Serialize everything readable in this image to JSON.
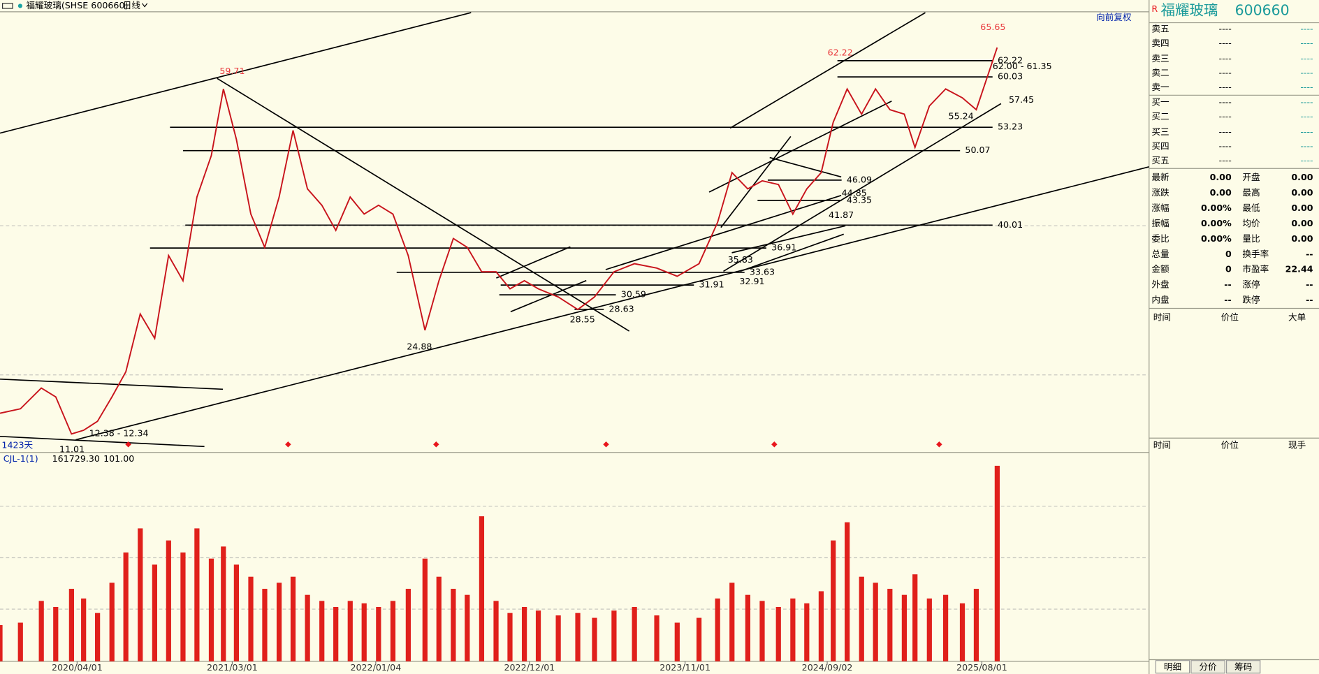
{
  "header": {
    "title": "福耀玻璃(SHSE 600660)",
    "period": "日线",
    "adjust": "向前复权"
  },
  "chart_data": {
    "type": "line",
    "color": "#c8141c",
    "x": [
      "2019/10/18",
      "2019/12/01",
      "2020/01/15",
      "2020/02/15",
      "2020/03/20",
      "2020/04/15",
      "2020/05/15",
      "2020/06/15",
      "2020/07/15",
      "2020/08/15",
      "2020/09/15",
      "2020/10/15",
      "2020/11/15",
      "2020/12/15",
      "2021/01/15",
      "2021/02/10",
      "2021/03/10",
      "2021/04/10",
      "2021/05/10",
      "2021/06/10",
      "2021/07/10",
      "2021/08/10",
      "2021/09/10",
      "2021/10/10",
      "2021/11/10",
      "2021/12/10",
      "2022/01/10",
      "2022/02/10",
      "2022/03/15",
      "2022/04/20",
      "2022/05/20",
      "2022/06/20",
      "2022/07/20",
      "2022/08/20",
      "2022/09/20",
      "2022/10/20",
      "2022/11/20",
      "2022/12/20",
      "2023/02/01",
      "2023/03/15",
      "2023/04/20",
      "2023/06/01",
      "2023/07/15",
      "2023/09/01",
      "2023/10/15",
      "2023/12/01",
      "2024/01/10",
      "2024/02/10",
      "2024/03/15",
      "2024/04/15",
      "2024/05/20",
      "2024/06/20",
      "2024/07/20",
      "2024/08/20",
      "2024/09/15",
      "2024/10/15",
      "2024/11/15",
      "2024/12/15",
      "2025/01/15",
      "2025/02/15",
      "2025/03/10",
      "2025/04/10",
      "2025/05/15",
      "2025/06/20",
      "2025/07/20",
      "2025/09/03"
    ],
    "values": [
      14.6,
      15.2,
      18.0,
      16.8,
      11.8,
      12.3,
      13.5,
      16.8,
      20.2,
      28.0,
      24.7,
      35.9,
      32.5,
      43.8,
      49.4,
      58.4,
      51.6,
      41.5,
      37.0,
      43.8,
      52.8,
      44.9,
      42.7,
      39.3,
      43.8,
      41.5,
      42.7,
      41.5,
      35.9,
      25.8,
      32.5,
      38.2,
      37.0,
      33.7,
      33.7,
      31.4,
      32.5,
      31.4,
      30.3,
      28.6,
      30.3,
      33.7,
      34.8,
      34.2,
      33.1,
      34.8,
      40.4,
      47.1,
      44.9,
      46.0,
      45.5,
      41.5,
      44.9,
      47.1,
      53.9,
      58.4,
      55.0,
      58.4,
      55.6,
      55.0,
      50.5,
      56.1,
      58.4,
      57.2,
      55.6,
      64.0
    ],
    "xlim": [
      "2019/10/18",
      "2026/07/27"
    ],
    "xticks": [
      "2020/04/01",
      "2021/03/01",
      "2022/01/04",
      "2022/12/01",
      "2023/11/01",
      "2024/09/02",
      "2025/08/01"
    ],
    "ylim": [
      10.1,
      68.37
    ],
    "days_label": "1423天",
    "levels": [
      {
        "value": 62.22,
        "from": "2024/09/24",
        "to": "2025/08/24"
      },
      {
        "value": 60.03,
        "from": "2024/09/24",
        "to": "2025/08/24"
      },
      {
        "value": 53.23,
        "from": "2020/10/18",
        "to": "2025/08/24"
      },
      {
        "value": 50.07,
        "from": "2020/11/15",
        "to": "2025/06/15"
      },
      {
        "value": 46.09,
        "from": "2024/04/27",
        "to": "2024/10/03"
      },
      {
        "value": 43.35,
        "from": "2024/04/05",
        "to": "2024/10/03"
      },
      {
        "value": 40.01,
        "from": "2020/11/20",
        "to": "2025/08/24"
      },
      {
        "value": 36.91,
        "from": "2020/09/05",
        "to": "2024/04/24"
      },
      {
        "value": 33.63,
        "from": "2022/02/18",
        "to": "2024/03/08"
      },
      {
        "value": 31.91,
        "from": "2022/09/30",
        "to": "2023/11/20"
      },
      {
        "value": 30.59,
        "from": "2022/09/27",
        "to": "2023/06/05"
      },
      {
        "value": 28.63,
        "from": "2023/03/08",
        "to": "2023/05/10"
      }
    ],
    "annotations": [
      {
        "x": "2021/03/01",
        "y": 59.71,
        "color": "#e8363a"
      },
      {
        "x": "2024/09/30",
        "y": 62.22,
        "color": "#e8363a"
      },
      {
        "x": "2025/08/25",
        "y": 65.65,
        "color": "#e8363a"
      },
      {
        "x": "2022/04/08",
        "y": 24.88
      },
      {
        "x": "2020/03/21",
        "y": 11.01
      },
      {
        "x": "2020/04/27",
        "y": 12.38,
        "label": "12.38 - 12.34"
      },
      {
        "x": "2023/03/25",
        "y": 28.55
      },
      {
        "x": "2024/02/01",
        "y": 35.83
      },
      {
        "x": "2024/02/26",
        "y": 32.91
      },
      {
        "x": "2024/10/03",
        "y": 44.85
      },
      {
        "x": "2024/09/05",
        "y": 41.87
      },
      {
        "x": "2025/05/21",
        "y": 55.24
      },
      {
        "x": "2025/08/24",
        "y": 62.0,
        "label": "62.00 - 61.35"
      },
      {
        "x": "2025/09/28",
        "y": 57.45
      }
    ],
    "volume": {
      "indicator": "CJL-1(1)",
      "color": "#e0201b",
      "ylim": [
        0,
        170000
      ],
      "readouts": [
        {
          "value": 161729.3,
          "label": "161729.30"
        },
        {
          "value": 101,
          "label": "101.00"
        }
      ],
      "values": [
        30000,
        32000,
        50000,
        45000,
        60000,
        52000,
        40000,
        65000,
        90000,
        110000,
        80000,
        100000,
        90000,
        110000,
        85000,
        95000,
        80000,
        70000,
        60000,
        65000,
        70000,
        55000,
        50000,
        45000,
        50000,
        48000,
        45000,
        50000,
        60000,
        85000,
        70000,
        60000,
        55000,
        120000,
        50000,
        40000,
        45000,
        42000,
        38000,
        40000,
        36000,
        42000,
        45000,
        38000,
        32000,
        36000,
        52000,
        65000,
        55000,
        50000,
        45000,
        52000,
        48000,
        58000,
        100000,
        115000,
        70000,
        65000,
        60000,
        55000,
        72000,
        52000,
        55000,
        48000,
        60000,
        161729.3
      ]
    }
  },
  "quote_panel": {
    "flag": "R",
    "name": "福耀玻璃",
    "code": "600660",
    "book": [
      [
        "卖五",
        "----",
        "----"
      ],
      [
        "卖四",
        "----",
        "----"
      ],
      [
        "卖三",
        "----",
        "----"
      ],
      [
        "卖二",
        "----",
        "----"
      ],
      [
        "卖一",
        "----",
        "----"
      ],
      [
        "买一",
        "----",
        "----"
      ],
      [
        "买二",
        "----",
        "----"
      ],
      [
        "买三",
        "----",
        "----"
      ],
      [
        "买四",
        "----",
        "----"
      ],
      [
        "买五",
        "----",
        "----"
      ]
    ],
    "stats": [
      [
        "最新",
        "0.00",
        "开盘",
        "0.00"
      ],
      [
        "涨跌",
        "0.00",
        "最高",
        "0.00"
      ],
      [
        "涨幅",
        "0.00%",
        "最低",
        "0.00"
      ],
      [
        "振幅",
        "0.00%",
        "均价",
        "0.00"
      ],
      [
        "委比",
        "0.00%",
        "量比",
        "0.00"
      ],
      [
        "总量",
        "0",
        "换手率",
        "--"
      ],
      [
        "金额",
        "0",
        "市盈率",
        "22.44"
      ],
      [
        "外盘",
        "--",
        "涨停",
        "--"
      ],
      [
        "内盘",
        "--",
        "跌停",
        "--"
      ]
    ],
    "trades_header": [
      "时间",
      "价位",
      "大单"
    ],
    "ticks_header": [
      "时间",
      "价位",
      "现手"
    ],
    "tabs": [
      "明细",
      "分价",
      "筹码"
    ]
  }
}
